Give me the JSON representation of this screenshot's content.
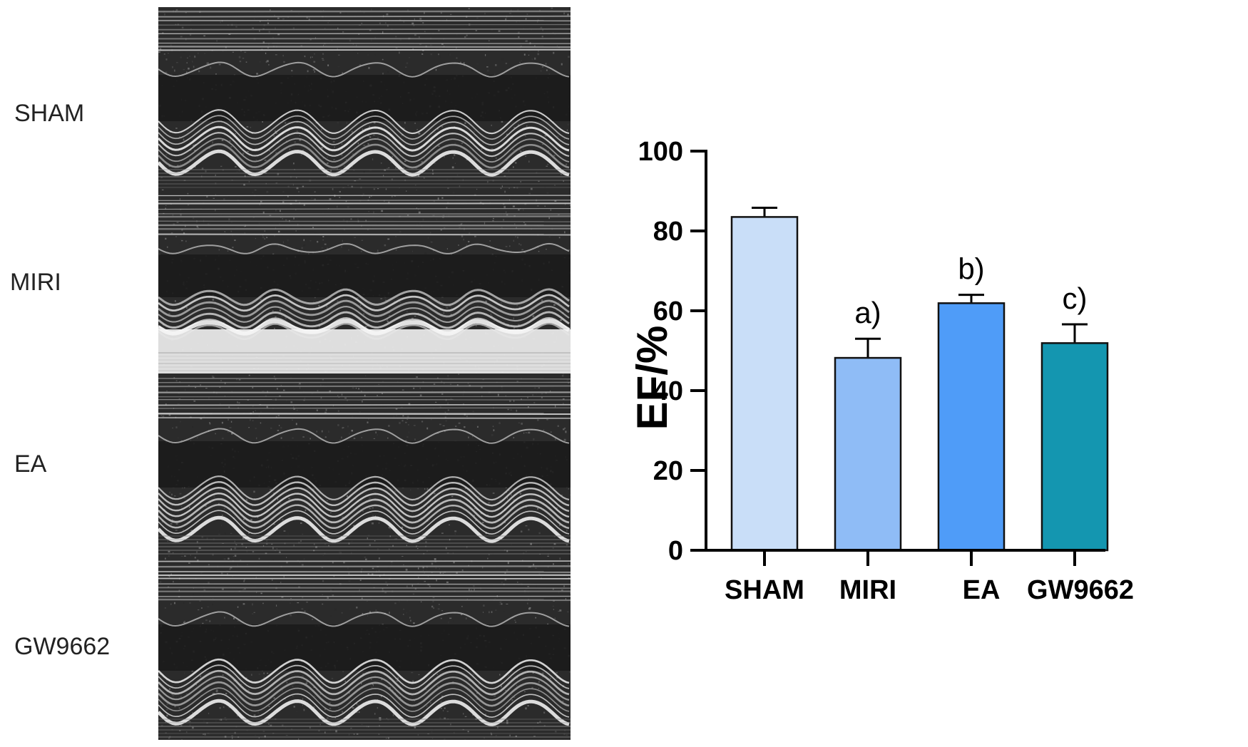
{
  "echo_panels": [
    {
      "label": "SHAM",
      "pattern": "normal-contraction"
    },
    {
      "label": "MIRI",
      "pattern": "bright-lower-wall"
    },
    {
      "label": "EA",
      "pattern": "normal-contraction"
    },
    {
      "label": "GW9662",
      "pattern": "irregular-contraction"
    }
  ],
  "chart_data": {
    "type": "bar",
    "title": "",
    "xlabel": "",
    "ylabel": "EF/%",
    "ylim": [
      0,
      100
    ],
    "yticks": [
      "0",
      "20",
      "40",
      "60",
      "80",
      "100"
    ],
    "categories": [
      "SHAM",
      "MIRI",
      "EA",
      "GW9662"
    ],
    "values": [
      83.5,
      48.2,
      61.9,
      51.9
    ],
    "errors": [
      2.3,
      4.8,
      2.1,
      4.7
    ],
    "annotations": [
      "",
      "a)",
      "b)",
      "c)"
    ],
    "colors": [
      "#c9def8",
      "#8fbcf6",
      "#4f9cf8",
      "#1496b0"
    ],
    "grid": false,
    "legend": "none"
  }
}
